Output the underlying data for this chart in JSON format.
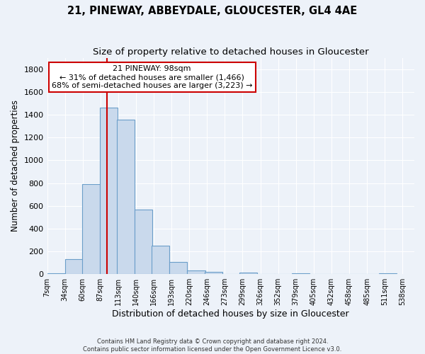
{
  "title_line1": "21, PINEWAY, ABBEYDALE, GLOUCESTER, GL4 4AE",
  "title_line2": "Size of property relative to detached houses in Gloucester",
  "xlabel": "Distribution of detached houses by size in Gloucester",
  "ylabel": "Number of detached properties",
  "bar_left_edges": [
    7,
    34,
    60,
    87,
    113,
    140,
    166,
    193,
    220,
    246,
    273,
    299,
    326,
    352,
    379,
    405,
    432,
    458,
    485,
    511
  ],
  "bar_heights": [
    10,
    130,
    790,
    1460,
    1360,
    570,
    250,
    105,
    30,
    20,
    0,
    15,
    0,
    0,
    5,
    0,
    0,
    0,
    0,
    5
  ],
  "bin_width": 27,
  "bar_color": "#c9d9ec",
  "bar_edge_color": "#6b9ec9",
  "property_value": 98,
  "vline_color": "#cc0000",
  "annotation_text": "21 PINEWAY: 98sqm\n← 31% of detached houses are smaller (1,466)\n68% of semi-detached houses are larger (3,223) →",
  "annotation_box_color": "white",
  "annotation_box_edge_color": "#cc0000",
  "annotation_fontsize": 8.0,
  "ylim": [
    0,
    1900
  ],
  "yticks": [
    0,
    200,
    400,
    600,
    800,
    1000,
    1200,
    1400,
    1600,
    1800
  ],
  "tick_labels": [
    "7sqm",
    "34sqm",
    "60sqm",
    "87sqm",
    "113sqm",
    "140sqm",
    "166sqm",
    "193sqm",
    "220sqm",
    "246sqm",
    "273sqm",
    "299sqm",
    "326sqm",
    "352sqm",
    "379sqm",
    "405sqm",
    "432sqm",
    "458sqm",
    "485sqm",
    "511sqm",
    "538sqm"
  ],
  "background_color": "#edf2f9",
  "grid_color": "#ffffff",
  "footer_line1": "Contains HM Land Registry data © Crown copyright and database right 2024.",
  "footer_line2": "Contains public sector information licensed under the Open Government Licence v3.0.",
  "title_fontsize": 10.5,
  "subtitle_fontsize": 9.5,
  "xlabel_fontsize": 9,
  "ylabel_fontsize": 8.5,
  "tick_fontsize": 7,
  "ytick_fontsize": 8
}
